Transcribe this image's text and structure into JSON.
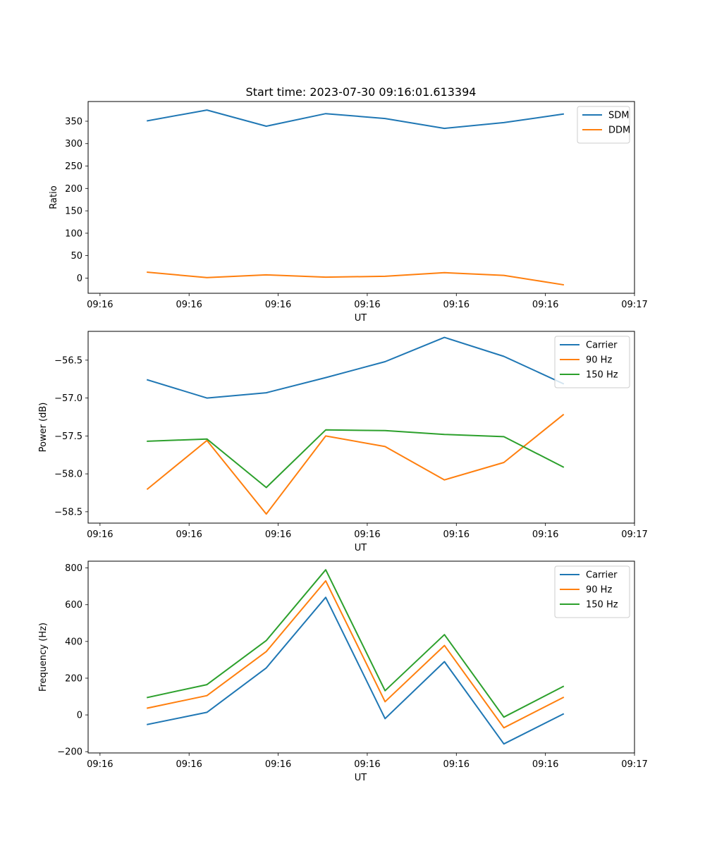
{
  "figure": {
    "title": "Start time: 2023-07-30 09:16:01.613394"
  },
  "chart_data": [
    {
      "type": "line",
      "title": "Start time: 2023-07-30 09:16:01.613394",
      "xlabel": "UT",
      "ylabel": "Ratio",
      "x": [
        1,
        2,
        3,
        4,
        5,
        6,
        7,
        8
      ],
      "xlim": [
        0,
        9.2
      ],
      "x_ticks": [
        0.2,
        1.7,
        3.2,
        4.7,
        6.2,
        7.7,
        9.2
      ],
      "x_tick_labels": [
        "09:16",
        "09:16",
        "09:16",
        "09:16",
        "09:16",
        "09:16",
        "09:17"
      ],
      "ylim": [
        -34,
        394
      ],
      "y_ticks": [
        0,
        50,
        100,
        150,
        200,
        250,
        300,
        350
      ],
      "y_tick_labels": [
        "0",
        "50",
        "100",
        "150",
        "200",
        "250",
        "300",
        "350"
      ],
      "legend_position": "top-right",
      "series": [
        {
          "name": "SDM",
          "color": "#1f77b4",
          "values": [
            351,
            375,
            339,
            367,
            356,
            334,
            347,
            366
          ]
        },
        {
          "name": "DDM",
          "color": "#ff7f0e",
          "values": [
            13,
            1,
            7,
            2,
            4,
            12,
            6,
            -15
          ]
        }
      ]
    },
    {
      "type": "line",
      "title": "",
      "xlabel": "UT",
      "ylabel": "Power (dB)",
      "x": [
        1,
        2,
        3,
        4,
        5,
        6,
        7,
        8
      ],
      "xlim": [
        0,
        9.2
      ],
      "x_ticks": [
        0.2,
        1.7,
        3.2,
        4.7,
        6.2,
        7.7,
        9.2
      ],
      "x_tick_labels": [
        "09:16",
        "09:16",
        "09:16",
        "09:16",
        "09:16",
        "09:16",
        "09:17"
      ],
      "ylim": [
        -58.65,
        -56.12
      ],
      "y_ticks": [
        -58.5,
        -58.0,
        -57.5,
        -57.0,
        -56.5
      ],
      "y_tick_labels": [
        "−58.5",
        "−58.0",
        "−57.5",
        "−57.0",
        "−56.5"
      ],
      "legend_position": "top-right",
      "series": [
        {
          "name": "Carrier",
          "color": "#1f77b4",
          "values": [
            -56.76,
            -57.0,
            -56.93,
            -56.73,
            -56.52,
            -56.2,
            -56.45,
            -56.81
          ]
        },
        {
          "name": "90 Hz",
          "color": "#ff7f0e",
          "values": [
            -58.2,
            -57.56,
            -58.53,
            -57.5,
            -57.64,
            -58.08,
            -57.85,
            -57.22
          ]
        },
        {
          "name": "150 Hz",
          "color": "#2ca02c",
          "values": [
            -57.57,
            -57.54,
            -58.18,
            -57.42,
            -57.43,
            -57.48,
            -57.51,
            -57.91
          ]
        }
      ]
    },
    {
      "type": "line",
      "title": "",
      "xlabel": "UT",
      "ylabel": "Frequency (Hz)",
      "x": [
        1,
        2,
        3,
        4,
        5,
        6,
        7,
        8
      ],
      "xlim": [
        0,
        9.2
      ],
      "x_ticks": [
        0.2,
        1.7,
        3.2,
        4.7,
        6.2,
        7.7,
        9.2
      ],
      "x_tick_labels": [
        "09:16",
        "09:16",
        "09:16",
        "09:16",
        "09:16",
        "09:16",
        "09:17"
      ],
      "ylim": [
        -207,
        837
      ],
      "y_ticks": [
        -200,
        0,
        200,
        400,
        600,
        800
      ],
      "y_tick_labels": [
        "−200",
        "0",
        "200",
        "400",
        "600",
        "800"
      ],
      "legend_position": "top-right",
      "series": [
        {
          "name": "Carrier",
          "color": "#1f77b4",
          "values": [
            -52,
            14,
            256,
            640,
            -20,
            290,
            -158,
            5
          ]
        },
        {
          "name": "90 Hz",
          "color": "#ff7f0e",
          "values": [
            37,
            105,
            345,
            730,
            72,
            378,
            -70,
            95
          ]
        },
        {
          "name": "150 Hz",
          "color": "#2ca02c",
          "values": [
            95,
            165,
            405,
            790,
            132,
            437,
            -12,
            155
          ]
        }
      ]
    }
  ]
}
